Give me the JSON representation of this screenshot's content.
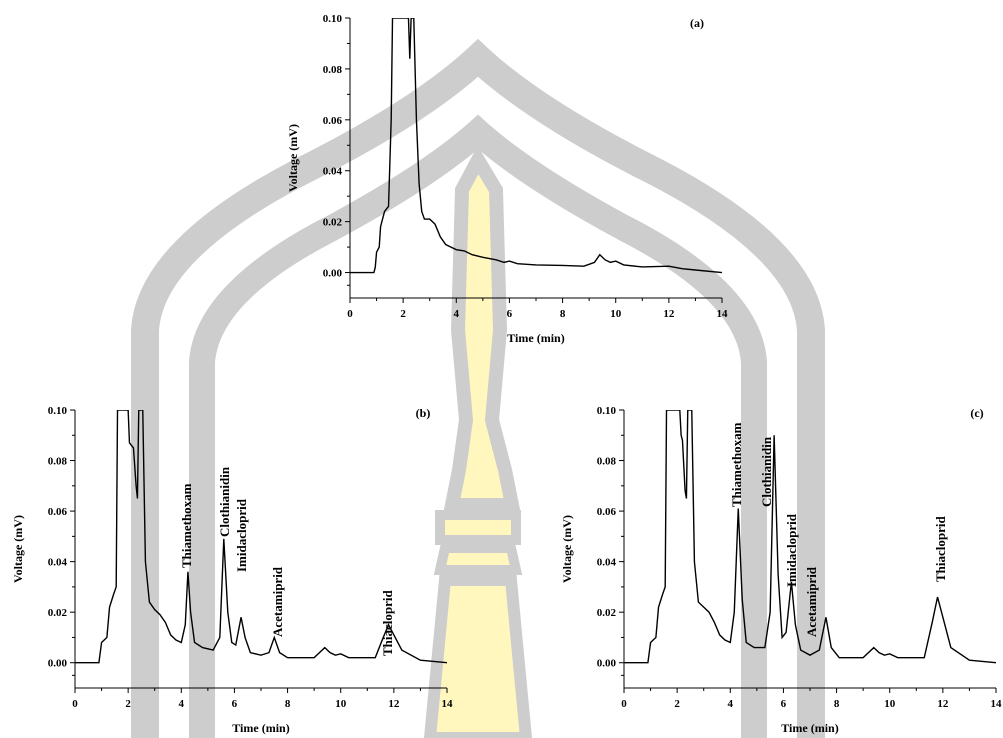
{
  "chart_data": [
    {
      "type": "line",
      "title": "(a)",
      "x_label": "Time (min)",
      "y_label": "Voltage (mV)",
      "color": "#000000",
      "xlim": [
        0,
        14
      ],
      "ylim": [
        -0.01,
        0.1
      ],
      "xticks": [
        0,
        2,
        4,
        6,
        8,
        10,
        12,
        14
      ],
      "yticks": [
        {
          "value": 0,
          "label": "0.00"
        },
        0.02,
        0.04,
        0.06,
        0.08,
        {
          "value": 0.1,
          "label": "0.10"
        }
      ],
      "annotations": [],
      "x": [
        0,
        0.9,
        0.95,
        1.0,
        1.1,
        1.15,
        1.3,
        1.45,
        1.55,
        1.6,
        2.2,
        2.25,
        2.3,
        2.4,
        2.5,
        2.6,
        2.7,
        2.8,
        3.0,
        3.2,
        3.4,
        3.6,
        3.8,
        4.0,
        4.3,
        4.6,
        5.0,
        5.5,
        5.8,
        6.0,
        6.3,
        7.0,
        8.0,
        8.8,
        9.2,
        9.4,
        9.6,
        9.8,
        10.0,
        10.3,
        11.0,
        12.0,
        12.5,
        13.0,
        14.0
      ],
      "values": [
        0,
        0,
        0.002,
        0.008,
        0.01,
        0.018,
        0.024,
        0.026,
        0.06,
        0.1,
        0.1,
        0.084,
        0.1,
        0.1,
        0.06,
        0.035,
        0.024,
        0.021,
        0.021,
        0.019,
        0.014,
        0.011,
        0.01,
        0.009,
        0.0085,
        0.007,
        0.006,
        0.005,
        0.004,
        0.0045,
        0.0035,
        0.003,
        0.0028,
        0.0025,
        0.004,
        0.007,
        0.005,
        0.004,
        0.0045,
        0.003,
        0.0022,
        0.0025,
        0.0015,
        0.001,
        0
      ]
    },
    {
      "type": "line",
      "title": "(b)",
      "x_label": "Time (min)",
      "y_label": "Voltage (mV)",
      "color": "#000000",
      "xlim": [
        0,
        14
      ],
      "ylim": [
        -0.01,
        0.1
      ],
      "xticks": [
        0,
        2,
        4,
        6,
        8,
        10,
        12,
        14
      ],
      "yticks": [
        {
          "value": 0,
          "label": "0.00"
        },
        0.02,
        0.04,
        0.06,
        0.08,
        {
          "value": 0.1,
          "label": "0.10"
        }
      ],
      "annotations": [
        "Thiamethoxam",
        "Clothianidin",
        "Imidacloprid",
        "Acetamiprid",
        "Thiacloprid"
      ],
      "x": [
        0,
        0.9,
        1.0,
        1.2,
        1.3,
        1.45,
        1.55,
        1.6,
        2.0,
        2.05,
        2.2,
        2.3,
        2.35,
        2.4,
        2.55,
        2.65,
        2.8,
        3.0,
        3.2,
        3.4,
        3.6,
        3.8,
        4.0,
        4.15,
        4.25,
        4.35,
        4.5,
        4.8,
        5.2,
        5.45,
        5.6,
        5.75,
        5.9,
        6.05,
        6.25,
        6.4,
        6.6,
        7.0,
        7.3,
        7.5,
        7.7,
        8.0,
        9.0,
        9.4,
        9.6,
        9.8,
        10.0,
        10.3,
        11.3,
        11.6,
        11.8,
        12.0,
        12.3,
        13.0,
        14.0
      ],
      "values": [
        0,
        0,
        0.008,
        0.01,
        0.022,
        0.027,
        0.03,
        0.1,
        0.1,
        0.087,
        0.085,
        0.07,
        0.065,
        0.1,
        0.1,
        0.04,
        0.024,
        0.021,
        0.019,
        0.016,
        0.011,
        0.009,
        0.008,
        0.015,
        0.036,
        0.02,
        0.008,
        0.006,
        0.005,
        0.01,
        0.049,
        0.02,
        0.008,
        0.007,
        0.018,
        0.01,
        0.004,
        0.003,
        0.004,
        0.01,
        0.004,
        0.002,
        0.002,
        0.006,
        0.004,
        0.003,
        0.0035,
        0.002,
        0.002,
        0.01,
        0.015,
        0.011,
        0.005,
        0.001,
        0
      ]
    },
    {
      "type": "line",
      "title": "(c)",
      "x_label": "Time (min)",
      "y_label": "Voltage (mV)",
      "color": "#000000",
      "xlim": [
        0,
        14
      ],
      "ylim": [
        -0.01,
        0.1
      ],
      "xticks": [
        0,
        2,
        4,
        6,
        8,
        10,
        12,
        14
      ],
      "yticks": [
        {
          "value": 0,
          "label": "0.00"
        },
        0.02,
        0.04,
        0.06,
        0.08,
        {
          "value": 0.1,
          "label": "0.10"
        }
      ],
      "annotations": [
        "Thiamethoxam",
        "Clothianidin",
        "Imidacloprid",
        "Acetamiprid",
        "Thiacloprid"
      ],
      "x": [
        0,
        0.9,
        1.0,
        1.2,
        1.3,
        1.45,
        1.55,
        1.6,
        2.0,
        2.1,
        2.15,
        2.2,
        2.3,
        2.35,
        2.4,
        2.55,
        2.65,
        2.8,
        3.0,
        3.2,
        3.4,
        3.6,
        3.8,
        4.0,
        4.15,
        4.3,
        4.45,
        4.6,
        4.9,
        5.3,
        5.5,
        5.65,
        5.8,
        5.95,
        6.1,
        6.3,
        6.45,
        6.65,
        7.0,
        7.35,
        7.6,
        7.8,
        8.1,
        9.0,
        9.4,
        9.6,
        9.8,
        10.0,
        10.3,
        11.3,
        11.6,
        11.8,
        12.0,
        12.3,
        13.0,
        14.0
      ],
      "values": [
        0,
        0,
        0.008,
        0.01,
        0.022,
        0.027,
        0.03,
        0.1,
        0.1,
        0.1,
        0.09,
        0.088,
        0.068,
        0.065,
        0.1,
        0.1,
        0.04,
        0.024,
        0.022,
        0.02,
        0.016,
        0.011,
        0.009,
        0.008,
        0.02,
        0.061,
        0.025,
        0.008,
        0.006,
        0.006,
        0.02,
        0.09,
        0.035,
        0.01,
        0.012,
        0.032,
        0.015,
        0.005,
        0.003,
        0.005,
        0.018,
        0.006,
        0.002,
        0.002,
        0.006,
        0.004,
        0.003,
        0.0035,
        0.002,
        0.002,
        0.016,
        0.026,
        0.018,
        0.006,
        0.001,
        0
      ]
    }
  ]
}
